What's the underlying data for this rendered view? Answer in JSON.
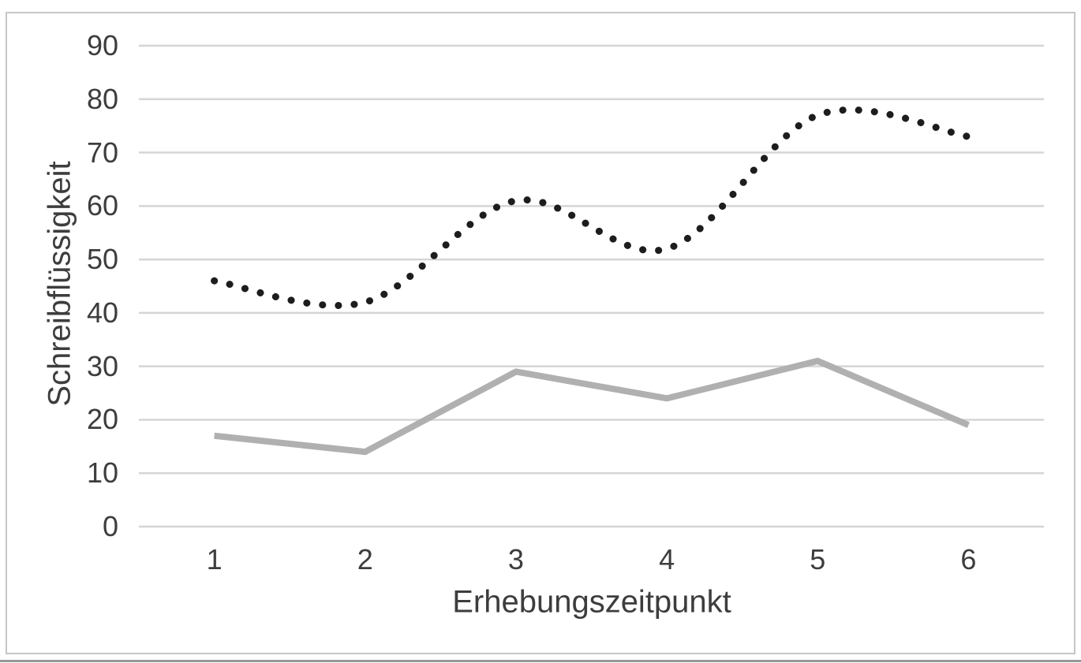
{
  "figure": {
    "background_color": "#ffffff",
    "border_color": "#c6c6c6",
    "bottom_edge_color": "#979797",
    "text_color": "#3d3d3d",
    "gridline_color": "#d5d5d5"
  },
  "chart_data": {
    "type": "line",
    "title": "",
    "xlabel": "Erhebungszeitpunkt",
    "ylabel": "Schreibflüssigkeit",
    "categories": [
      1,
      2,
      3,
      4,
      5,
      6
    ],
    "x_tick_labels": [
      "1",
      "2",
      "3",
      "4",
      "5",
      "6"
    ],
    "y_ticks": [
      0,
      10,
      20,
      30,
      40,
      50,
      60,
      70,
      80,
      90
    ],
    "y_tick_labels": [
      "0",
      "10",
      "20",
      "30",
      "40",
      "50",
      "60",
      "70",
      "80",
      "90"
    ],
    "ylim": [
      0,
      90
    ],
    "grid": "horizontal",
    "legend_position": "none",
    "series": [
      {
        "name": "dotted-black-series",
        "line_style": "dotted",
        "smoothed": true,
        "color": "#1d1d1d",
        "values": [
          46,
          42,
          61,
          52,
          77,
          73
        ]
      },
      {
        "name": "solid-gray-series",
        "line_style": "solid",
        "smoothed": false,
        "color": "#b0b0b0",
        "values": [
          17,
          14,
          29,
          24,
          31,
          19
        ]
      }
    ]
  }
}
